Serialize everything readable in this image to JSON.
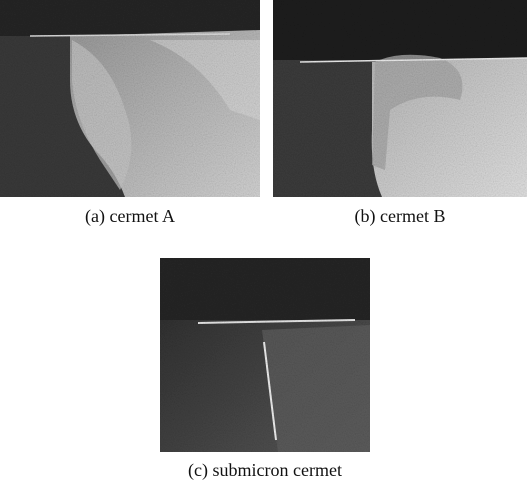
{
  "figure": {
    "panels": [
      {
        "caption": "(a) cermet A"
      },
      {
        "caption": "(b) cermet B"
      },
      {
        "caption": "(c) submicron cermet"
      }
    ]
  }
}
